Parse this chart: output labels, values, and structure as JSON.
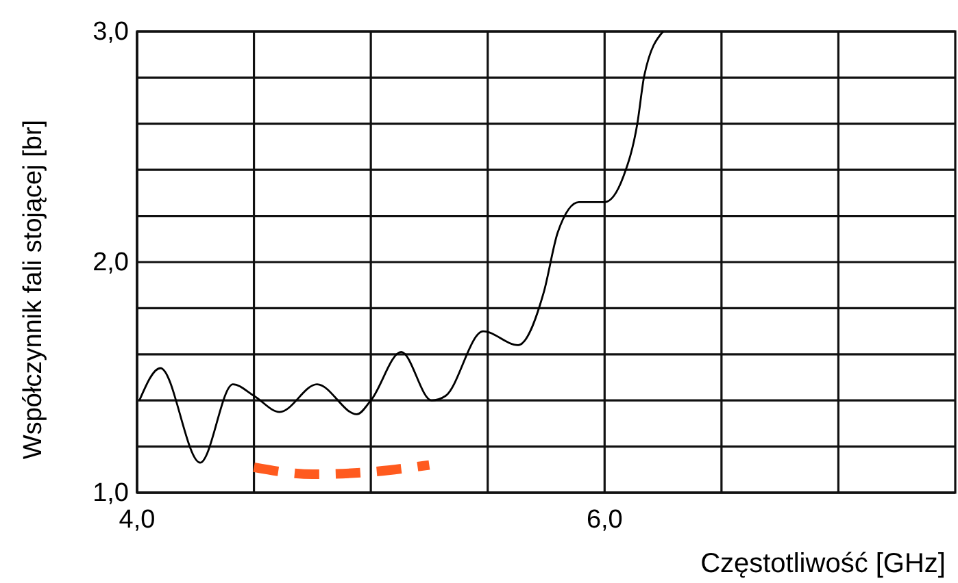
{
  "chart_data": {
    "type": "line",
    "xlabel": "Częstotliwość [GHz]",
    "ylabel": "Współczynnik fali stojącej [br]",
    "xlim": [
      4,
      7.5
    ],
    "ylim": [
      1,
      3
    ],
    "xticks": [
      {
        "value": 4,
        "label": "4,0"
      },
      {
        "value": 4.5,
        "label": null
      },
      {
        "value": 5,
        "label": null
      },
      {
        "value": 5.5,
        "label": null
      },
      {
        "value": 6,
        "label": "6,0"
      },
      {
        "value": 6.5,
        "label": null
      },
      {
        "value": 7,
        "label": null
      }
    ],
    "yticks": [
      {
        "value": 1,
        "label": "1,0"
      },
      {
        "value": 1.2,
        "label": null
      },
      {
        "value": 1.4,
        "label": null
      },
      {
        "value": 1.6,
        "label": null
      },
      {
        "value": 1.8,
        "label": null
      },
      {
        "value": 2,
        "label": "2,0"
      },
      {
        "value": 2.2,
        "label": null
      },
      {
        "value": 2.4,
        "label": null
      },
      {
        "value": 2.6,
        "label": null
      },
      {
        "value": 2.8,
        "label": null
      },
      {
        "value": 3,
        "label": "3,0"
      }
    ],
    "grid": true,
    "series": [
      {
        "color": "#000000",
        "line_style": "solid",
        "x": [
          4.01,
          4.1,
          4.27,
          4.41,
          4.5,
          4.61,
          4.77,
          4.94,
          5.0,
          5.13,
          5.26,
          5.32,
          5.48,
          5.63,
          5.74,
          5.8,
          5.89,
          6.0,
          6.08,
          6.14,
          6.17,
          6.25
        ],
        "values": [
          1.4,
          1.54,
          1.13,
          1.47,
          1.42,
          1.35,
          1.47,
          1.34,
          1.4,
          1.61,
          1.4,
          1.42,
          1.7,
          1.64,
          1.87,
          2.13,
          2.26,
          2.26,
          2.37,
          2.6,
          2.81,
          3.0
        ]
      },
      {
        "color": "#ff5a1e",
        "line_style": "dashed",
        "x": [
          4.5,
          4.75,
          5.0,
          5.25
        ],
        "values": [
          1.11,
          1.08,
          1.09,
          1.12
        ]
      }
    ]
  }
}
